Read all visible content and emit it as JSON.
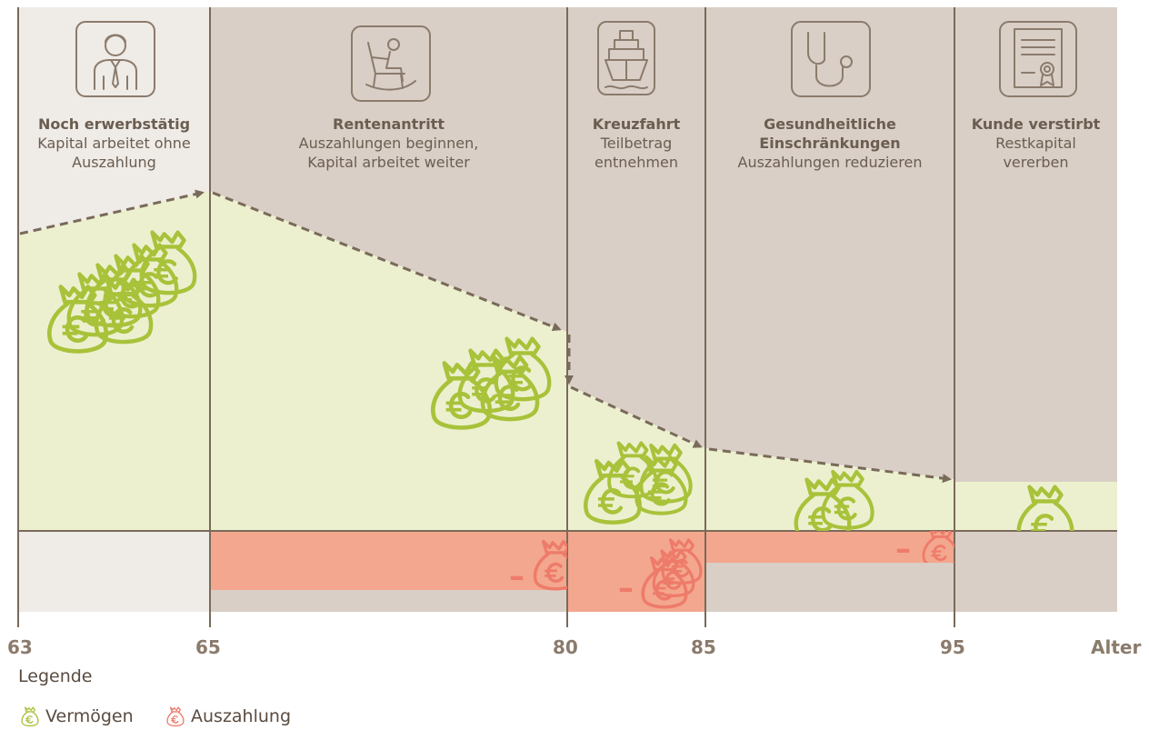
{
  "phases": [
    {
      "title": "Noch erwerbstätig",
      "desc": [
        "Kapital arbeitet ohne",
        "Auszahlung"
      ],
      "icon": "worker-with-tie-icon"
    },
    {
      "title": "Rentenantritt",
      "desc": [
        "Auszahlungen beginnen,",
        "Kapital arbeitet weiter"
      ],
      "icon": "rocking-chair-icon"
    },
    {
      "title": "Kreuzfahrt",
      "desc": [
        "Teilbetrag",
        "entnehmen"
      ],
      "icon": "cruise-ship-icon"
    },
    {
      "title": "Gesundheitliche Einschränkungen",
      "title_lines": [
        "Gesundheitliche",
        "Einschränkungen"
      ],
      "desc": [
        "Auszahlungen reduzieren"
      ],
      "icon": "stethoscope-icon"
    },
    {
      "title": "Kunde verstirbt",
      "desc": [
        "Restkapital",
        "vererben"
      ],
      "icon": "certificate-icon"
    }
  ],
  "axis": {
    "ticks": [
      "63",
      "65",
      "80",
      "85",
      "95"
    ],
    "unit_label": "Alter"
  },
  "legend": {
    "title": "Legende",
    "items": [
      {
        "label": "Vermögen",
        "color": "#a8c23a",
        "icon": "money-bag-icon"
      },
      {
        "label": "Auszahlung",
        "color": "#ee7b6a",
        "icon": "money-bag-icon"
      }
    ]
  },
  "symbols": {
    "minus": "–",
    "currency": "€"
  },
  "colors": {
    "working_bg": "#efebe7",
    "retired_bg": "#d9cfc6",
    "assets": "#ecf0cf",
    "payout": "#f3a78e",
    "line": "#7a6a5a",
    "bag_green": "#a8c23a",
    "bag_red": "#ee7b6a"
  }
}
